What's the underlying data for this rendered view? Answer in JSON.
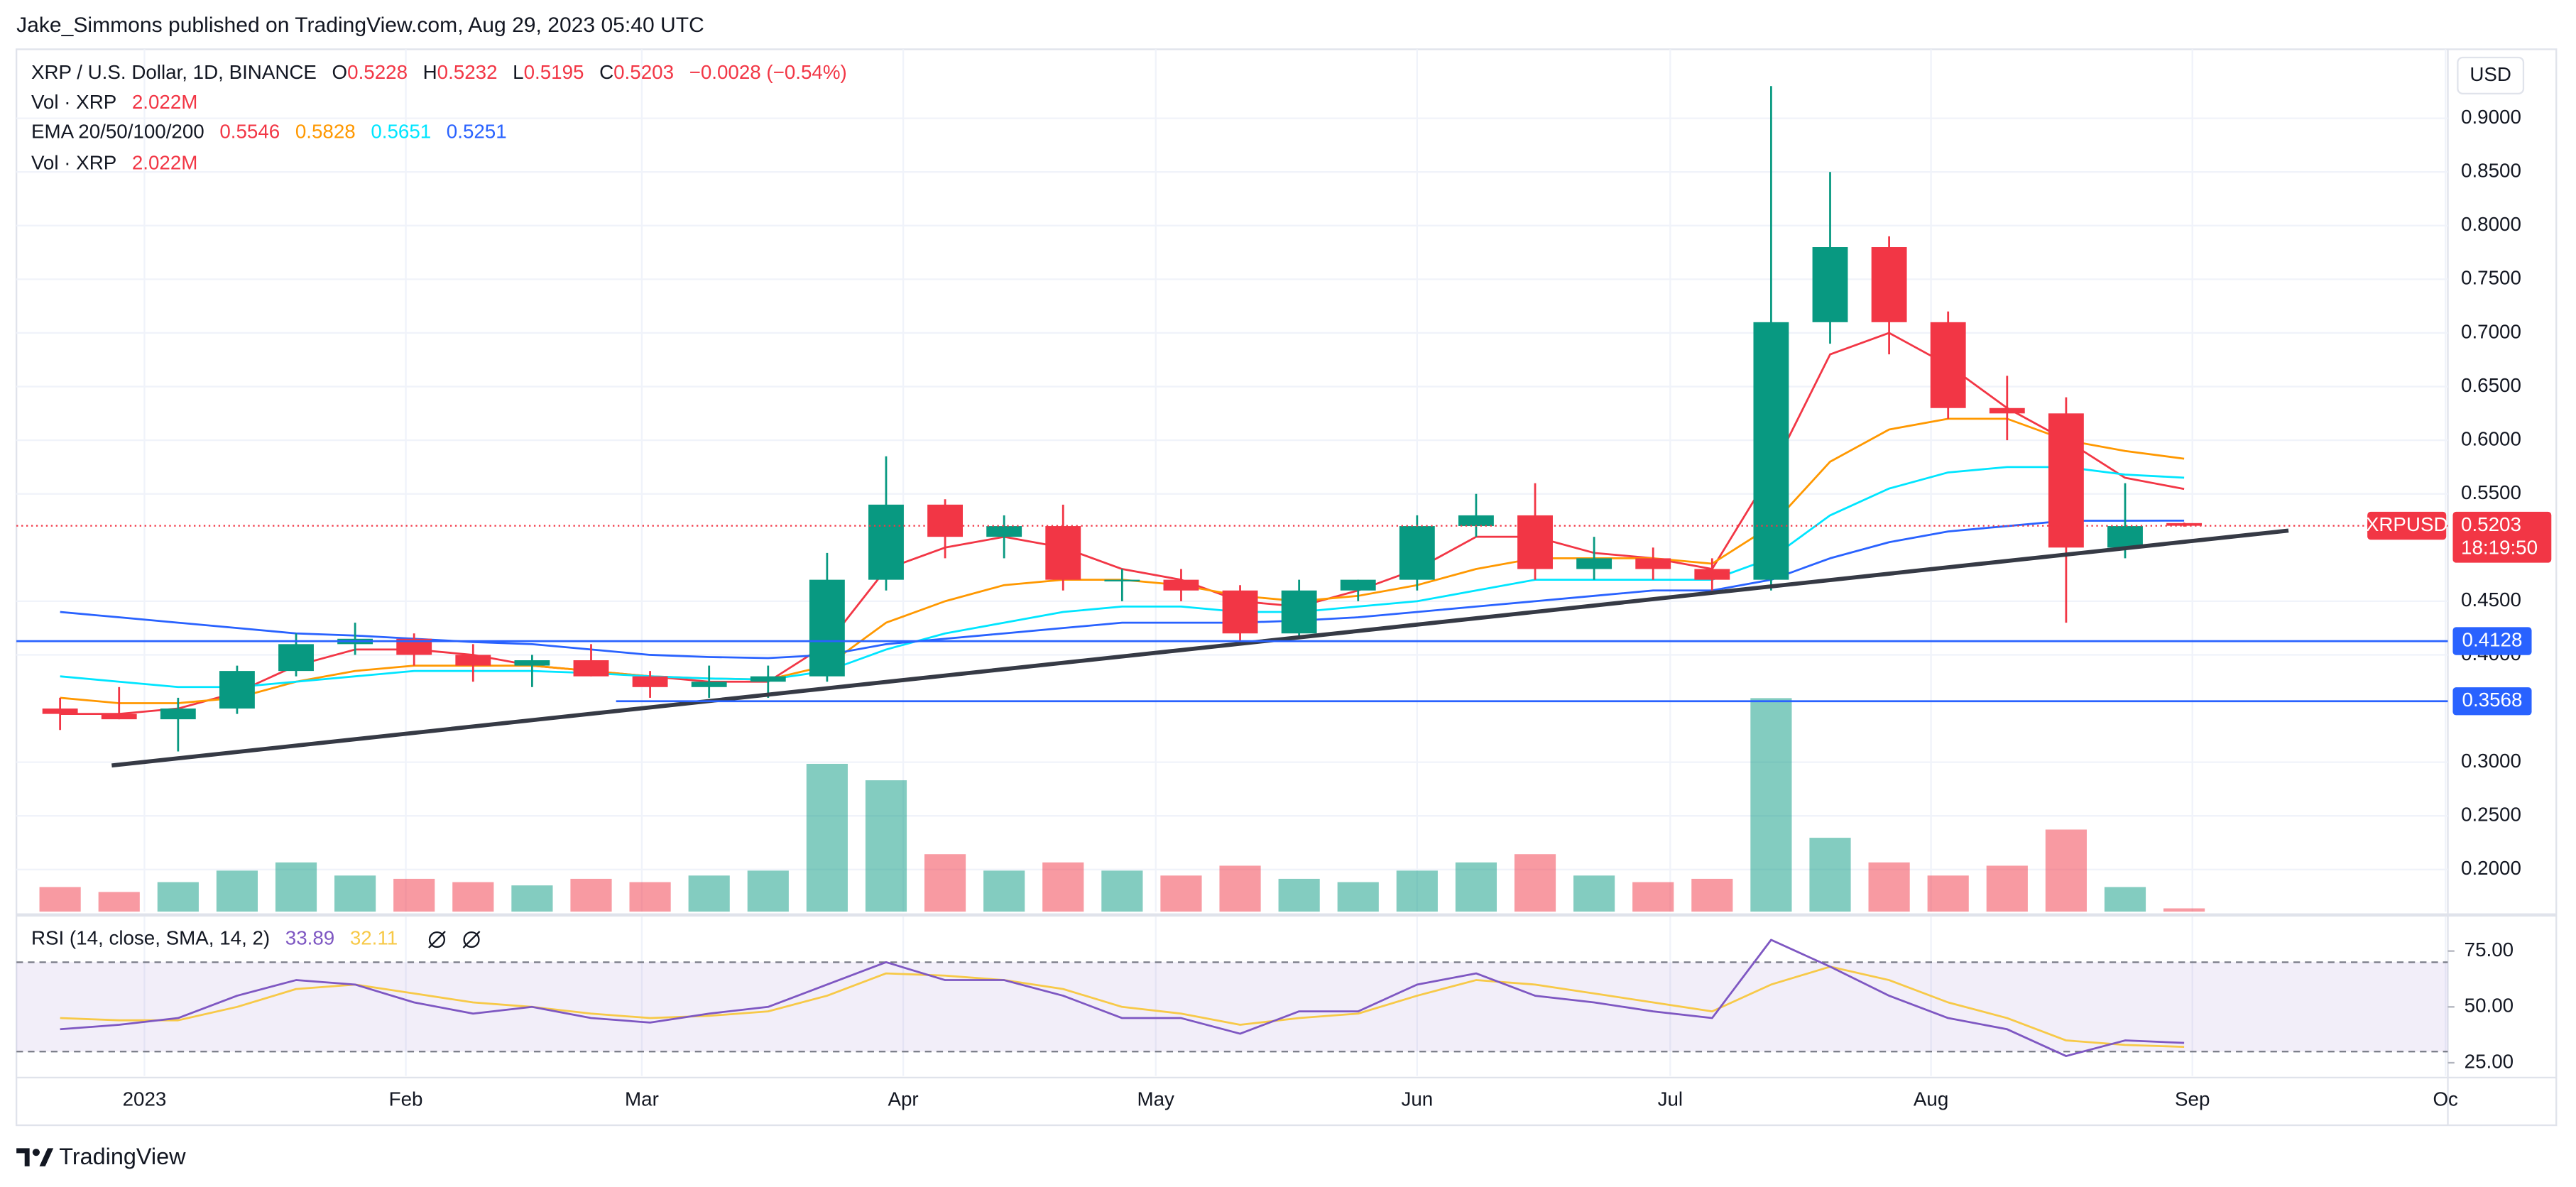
{
  "chart_data": {
    "type": "candlestick",
    "attribution": "Jake_Simmons published on TradingView.com, Aug 29, 2023 05:40 UTC",
    "title": "XRP / U.S. Dollar, 1D, BINANCE",
    "currency": "USD",
    "brand": "TradingView",
    "up_color": "#089981",
    "down_color": "#f23645",
    "grid": true,
    "categories": [
      null,
      null,
      null,
      null,
      null,
      null,
      null,
      null,
      null,
      null,
      null,
      null,
      null,
      null,
      null,
      null,
      null,
      null,
      null,
      null,
      null,
      null,
      null,
      null,
      null,
      null,
      null,
      null,
      null,
      null,
      null,
      null,
      null,
      null,
      null,
      null,
      null
    ],
    "xlim": [
      -0.74,
      40.47
    ],
    "xticks": [
      {
        "value": 1.43,
        "label": "2023"
      },
      {
        "value": 5.86,
        "label": "Feb"
      },
      {
        "value": 9.86,
        "label": "Mar"
      },
      {
        "value": 14.29,
        "label": "Apr"
      },
      {
        "value": 18.57,
        "label": "May"
      },
      {
        "value": 23,
        "label": "Jun"
      },
      {
        "value": 27.29,
        "label": "Jul"
      },
      {
        "value": 31.71,
        "label": "Aug"
      },
      {
        "value": 36.14,
        "label": "Sep"
      },
      {
        "value": 40.43,
        "label": "Oc"
      }
    ],
    "ylim": [
      0.1607,
      0.9643
    ],
    "yticks": [
      {
        "value": 0.9,
        "label": "0.9000"
      },
      {
        "value": 0.85,
        "label": "0.8500"
      },
      {
        "value": 0.8,
        "label": "0.8000"
      },
      {
        "value": 0.75,
        "label": "0.7500"
      },
      {
        "value": 0.7,
        "label": "0.7000"
      },
      {
        "value": 0.65,
        "label": "0.6500"
      },
      {
        "value": 0.6,
        "label": "0.6000"
      },
      {
        "value": 0.55,
        "label": "0.5500"
      },
      {
        "value": 0.45,
        "label": "0.4500"
      },
      {
        "value": 0.4,
        "label": "0.4000"
      },
      {
        "value": 0.3,
        "label": "0.3000"
      },
      {
        "value": 0.25,
        "label": "0.2500"
      },
      {
        "value": 0.2,
        "label": "0.2000"
      }
    ],
    "open": [
      0.35,
      0.345,
      0.34,
      0.35,
      0.385,
      0.41,
      0.415,
      0.4,
      0.39,
      0.395,
      0.38,
      0.37,
      0.375,
      0.38,
      0.47,
      0.54,
      0.51,
      0.52,
      0.47,
      0.47,
      0.46,
      0.42,
      0.46,
      0.47,
      0.52,
      0.53,
      0.48,
      0.49,
      0.48,
      0.47,
      0.71,
      0.78,
      0.71,
      0.63,
      0.625,
      0.5,
      0.5228
    ],
    "high": [
      0.36,
      0.37,
      0.36,
      0.39,
      0.42,
      0.43,
      0.42,
      0.41,
      0.4,
      0.41,
      0.385,
      0.39,
      0.39,
      0.495,
      0.585,
      0.545,
      0.53,
      0.54,
      0.48,
      0.48,
      0.465,
      0.47,
      0.47,
      0.53,
      0.55,
      0.56,
      0.51,
      0.5,
      0.49,
      0.93,
      0.85,
      0.79,
      0.72,
      0.66,
      0.64,
      0.56,
      0.5232
    ],
    "low": [
      0.33,
      0.34,
      0.31,
      0.345,
      0.38,
      0.4,
      0.39,
      0.375,
      0.37,
      0.38,
      0.36,
      0.36,
      0.36,
      0.375,
      0.46,
      0.49,
      0.49,
      0.46,
      0.45,
      0.45,
      0.41,
      0.415,
      0.45,
      0.46,
      0.51,
      0.47,
      0.47,
      0.47,
      0.46,
      0.46,
      0.69,
      0.68,
      0.62,
      0.6,
      0.43,
      0.49,
      0.5195
    ],
    "close": [
      0.345,
      0.34,
      0.35,
      0.385,
      0.41,
      0.415,
      0.4,
      0.39,
      0.395,
      0.38,
      0.37,
      0.375,
      0.38,
      0.47,
      0.54,
      0.51,
      0.52,
      0.47,
      0.47,
      0.46,
      0.42,
      0.46,
      0.47,
      0.52,
      0.53,
      0.48,
      0.49,
      0.48,
      0.47,
      0.71,
      0.78,
      0.71,
      0.63,
      0.625,
      0.5,
      0.52,
      0.5203
    ],
    "legend": {
      "o": "O",
      "h": "H",
      "l": "L",
      "c": "C",
      "change": "−0.0028 (−0.54%)"
    },
    "volume": {
      "name": "Vol · XRP",
      "values": [
        15,
        12,
        18,
        25,
        30,
        22,
        20,
        18,
        16,
        20,
        18,
        22,
        25,
        90,
        80,
        35,
        25,
        30,
        25,
        22,
        28,
        20,
        18,
        25,
        30,
        35,
        22,
        18,
        20,
        130,
        45,
        30,
        22,
        28,
        50,
        15,
        2.022
      ],
      "value_labels": [
        null,
        null,
        null,
        null,
        null,
        null,
        null,
        null,
        null,
        null,
        null,
        null,
        null,
        null,
        null,
        null,
        null,
        null,
        null,
        null,
        null,
        null,
        null,
        null,
        null,
        null,
        null,
        null,
        null,
        null,
        null,
        null,
        null,
        null,
        null,
        null,
        "2.022M"
      ]
    },
    "ema_label": "EMA 20/50/100/200",
    "series": [
      {
        "color": "#f23645",
        "values": [
          0.345,
          0.345,
          0.35,
          0.365,
          0.39,
          0.405,
          0.405,
          0.4,
          0.39,
          0.385,
          0.38,
          0.375,
          0.375,
          0.41,
          0.48,
          0.5,
          0.51,
          0.5,
          0.48,
          0.47,
          0.45,
          0.445,
          0.46,
          0.48,
          0.51,
          0.51,
          0.495,
          0.49,
          0.48,
          0.57,
          0.68,
          0.7,
          0.67,
          0.63,
          0.6,
          0.565,
          0.5546
        ]
      },
      {
        "color": "#ff9800",
        "values": [
          0.36,
          0.355,
          0.355,
          0.36,
          0.375,
          0.385,
          0.39,
          0.39,
          0.39,
          0.385,
          0.38,
          0.378,
          0.377,
          0.39,
          0.43,
          0.45,
          0.465,
          0.47,
          0.47,
          0.465,
          0.455,
          0.45,
          0.455,
          0.465,
          0.48,
          0.49,
          0.49,
          0.49,
          0.485,
          0.52,
          0.58,
          0.61,
          0.62,
          0.62,
          0.6,
          0.59,
          0.5828
        ]
      },
      {
        "color": "#00e5ff",
        "values": [
          0.38,
          0.375,
          0.37,
          0.37,
          0.375,
          0.38,
          0.385,
          0.385,
          0.385,
          0.383,
          0.38,
          0.378,
          0.377,
          0.385,
          0.405,
          0.42,
          0.43,
          0.44,
          0.445,
          0.445,
          0.44,
          0.44,
          0.445,
          0.45,
          0.46,
          0.47,
          0.47,
          0.47,
          0.47,
          0.49,
          0.53,
          0.555,
          0.57,
          0.575,
          0.575,
          0.568,
          0.5651
        ]
      },
      {
        "color": "#2962ff",
        "values": [
          0.44,
          0.435,
          0.43,
          0.425,
          0.42,
          0.418,
          0.415,
          0.412,
          0.41,
          0.405,
          0.4,
          0.398,
          0.397,
          0.4,
          0.41,
          0.415,
          0.42,
          0.425,
          0.43,
          0.43,
          0.43,
          0.432,
          0.435,
          0.44,
          0.445,
          0.45,
          0.455,
          0.46,
          0.46,
          0.47,
          0.49,
          0.505,
          0.515,
          0.52,
          0.525,
          0.525,
          0.5251
        ]
      }
    ],
    "levels": [
      0.4128,
      0.3568
    ],
    "level_color": "#2962ff",
    "last_price": {
      "symbol": "XRPUSD",
      "countdown": "18:19:50"
    },
    "rsi": {
      "title": "RSI (14, close, SMA, 14, 2)",
      "color": "#7e57c2",
      "ma_color": "#f7c948",
      "ylim": [
        19.1,
        90.4
      ],
      "yticks": [
        {
          "value": 75,
          "label": "75.00"
        },
        {
          "value": 50,
          "label": "50.00"
        },
        {
          "value": 25,
          "label": "25.00"
        }
      ],
      "bands": [
        30,
        70
      ],
      "values": [
        40,
        42,
        45,
        55,
        62,
        60,
        52,
        47,
        50,
        45,
        43,
        47,
        50,
        60,
        70,
        62,
        62,
        55,
        45,
        45,
        38,
        48,
        48,
        60,
        65,
        55,
        52,
        48,
        45,
        80,
        68,
        55,
        45,
        40,
        28,
        35,
        33.89
      ],
      "ma_values": [
        45,
        44,
        44,
        50,
        58,
        60,
        56,
        52,
        50,
        47,
        45,
        46,
        48,
        55,
        65,
        64,
        62,
        58,
        50,
        47,
        42,
        45,
        47,
        55,
        62,
        60,
        56,
        52,
        48,
        60,
        68,
        62,
        52,
        45,
        35,
        33,
        32.11
      ]
    }
  }
}
